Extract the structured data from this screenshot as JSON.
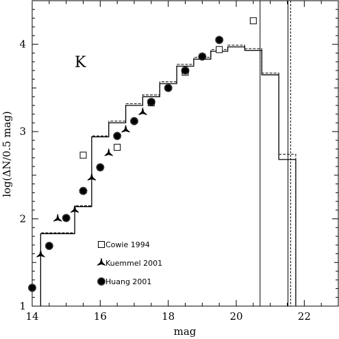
{
  "chart_data": {
    "type": "line",
    "panel_label": "K",
    "xlabel": "mag",
    "ylabel": "log(ΔN/0.5 mag)",
    "xlim": [
      14,
      23
    ],
    "ylim": [
      1,
      4.5
    ],
    "xticks": [
      14,
      16,
      18,
      20,
      22
    ],
    "yticks": [
      1,
      2,
      3,
      4
    ],
    "grid": false,
    "legend_position": "lower-left",
    "step_series": [
      {
        "style": "solid",
        "x": [
          14.25,
          14.25,
          15.25,
          15.25,
          15.75,
          15.75,
          16.25,
          16.25,
          16.75,
          16.75,
          17.25,
          17.25,
          17.75,
          17.75,
          18.25,
          18.25,
          18.75,
          18.75,
          19.25,
          19.25,
          19.75,
          19.75,
          20.25,
          20.25,
          20.75,
          20.75,
          21.25,
          21.25,
          21.75,
          21.75
        ],
        "y": [
          1,
          1.83,
          1.83,
          2.14,
          2.14,
          2.94,
          2.94,
          3.1,
          3.1,
          3.3,
          3.3,
          3.4,
          3.4,
          3.55,
          3.55,
          3.75,
          3.75,
          3.83,
          3.83,
          3.92,
          3.92,
          3.97,
          3.97,
          3.93,
          3.93,
          3.65,
          3.65,
          2.68,
          2.68,
          1
        ]
      },
      {
        "style": "dashed",
        "x": [
          14.25,
          14.25,
          15.25,
          15.25,
          15.75,
          15.75,
          16.25,
          16.25,
          16.75,
          16.75,
          17.25,
          17.25,
          17.75,
          17.75,
          18.25,
          18.25,
          18.75,
          18.75,
          19.25,
          19.25,
          19.75,
          19.75,
          20.25,
          20.25,
          20.75,
          20.75,
          21.25,
          21.25,
          21.75,
          21.75
        ],
        "y": [
          1,
          1.84,
          1.84,
          2.15,
          2.15,
          2.95,
          2.95,
          3.12,
          3.12,
          3.32,
          3.32,
          3.42,
          3.42,
          3.57,
          3.57,
          3.77,
          3.77,
          3.85,
          3.85,
          3.94,
          3.94,
          3.99,
          3.99,
          3.95,
          3.95,
          3.67,
          3.67,
          2.74,
          2.74,
          1
        ]
      }
    ],
    "vertical_lines": [
      {
        "x": 20.7,
        "style": "solid"
      },
      {
        "x": 21.52,
        "style": "solid"
      },
      {
        "x": 21.6,
        "style": "dashed"
      }
    ],
    "series": [
      {
        "name": "Cowie 1994",
        "marker": "open-square",
        "x": [
          15.5,
          16.5,
          17.5,
          18.5,
          19.5,
          20.5
        ],
        "y": [
          2.73,
          2.82,
          3.33,
          3.68,
          3.94,
          4.27
        ]
      },
      {
        "name": "Kuemmel 2001",
        "marker": "three-pronged-star",
        "x": [
          14.25,
          14.75,
          15.25,
          15.75,
          16.25,
          16.75,
          17.25
        ],
        "y": [
          1.59,
          2.0,
          2.1,
          2.47,
          2.75,
          3.02,
          3.22
        ]
      },
      {
        "name": "Huang 2001",
        "marker": "starburst",
        "x": [
          14.0,
          14.5,
          15.0,
          15.5,
          16.0,
          16.5,
          17.0,
          17.5,
          18.0,
          18.5,
          19.0,
          19.5
        ],
        "y": [
          1.21,
          1.69,
          2.01,
          2.32,
          2.59,
          2.95,
          3.12,
          3.34,
          3.5,
          3.7,
          3.86,
          4.05
        ]
      }
    ]
  }
}
